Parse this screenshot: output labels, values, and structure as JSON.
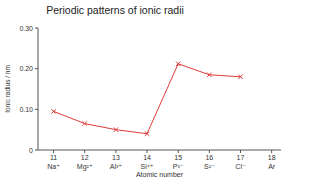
{
  "chart_data": {
    "type": "line",
    "title": "Periodic patterns of ionic radii",
    "x_label": "Atomic number",
    "y_label": "Ionic radius / nm",
    "x": [
      11,
      12,
      13,
      14,
      15,
      16,
      17,
      18
    ],
    "categories": [
      "Na⁺",
      "Mg²⁺",
      "Al³⁺",
      "Si⁴⁺",
      "P³⁻",
      "S²⁻",
      "Cl⁻",
      "Ar"
    ],
    "values": [
      0.095,
      0.065,
      0.05,
      0.04,
      0.212,
      0.185,
      0.18,
      null
    ],
    "color": "#e03a3a",
    "marker": "x",
    "line_style": "solid",
    "xlim": [
      10.5,
      18.3
    ],
    "xticks": [
      11,
      12,
      13,
      14,
      15,
      16,
      17,
      18
    ],
    "ylim": [
      0,
      0.3
    ],
    "yticks": [
      0,
      {
        "value": 0.1,
        "label": "0.10"
      },
      {
        "value": 0.2,
        "label": "0.20"
      },
      {
        "value": 0.3,
        "label": "0.30"
      }
    ],
    "grid": false
  }
}
